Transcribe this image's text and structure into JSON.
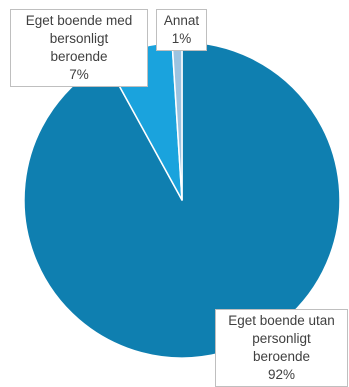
{
  "chart_data": {
    "type": "pie",
    "title": "",
    "slices": [
      {
        "name": "Eget boende utan personligt beroende",
        "value": 92,
        "pct_label": "92%",
        "label_lines": [
          "Eget boende utan",
          "personligt",
          "beroende"
        ],
        "color": "#0f7fb0"
      },
      {
        "name": "Eget boende med bersonligt beroende",
        "value": 7,
        "pct_label": "7%",
        "label_lines": [
          "Eget boende med",
          "bersonligt",
          "beroende"
        ],
        "color": "#1aa3dd"
      },
      {
        "name": "Annat",
        "value": 1,
        "pct_label": "1%",
        "label_lines": [
          "Annat"
        ],
        "color": "#9cc3e0"
      }
    ],
    "start_angle_deg": 0,
    "direction": "clockwise",
    "slice_border_color": "#ffffff"
  }
}
